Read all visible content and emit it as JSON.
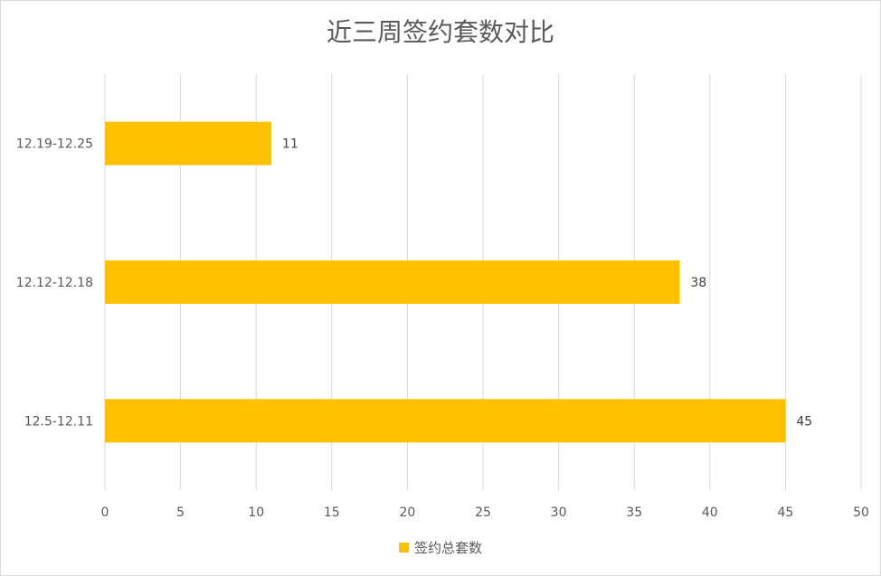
{
  "chart_data": {
    "type": "bar",
    "orientation": "horizontal",
    "title": "近三周签约套数对比",
    "categories": [
      "12.19-12.25",
      "12.12-12.18",
      "12.5-12.11"
    ],
    "series": [
      {
        "name": "签约总套数",
        "values": [
          11,
          38,
          45
        ],
        "color": "#ffc000"
      }
    ],
    "xlim": [
      0,
      50
    ],
    "xticks": [
      0,
      5,
      10,
      15,
      20,
      25,
      30,
      35,
      40,
      45,
      50
    ],
    "xlabel": "",
    "ylabel": "",
    "grid": "vertical",
    "legend": "bottom",
    "data_labels": true
  }
}
